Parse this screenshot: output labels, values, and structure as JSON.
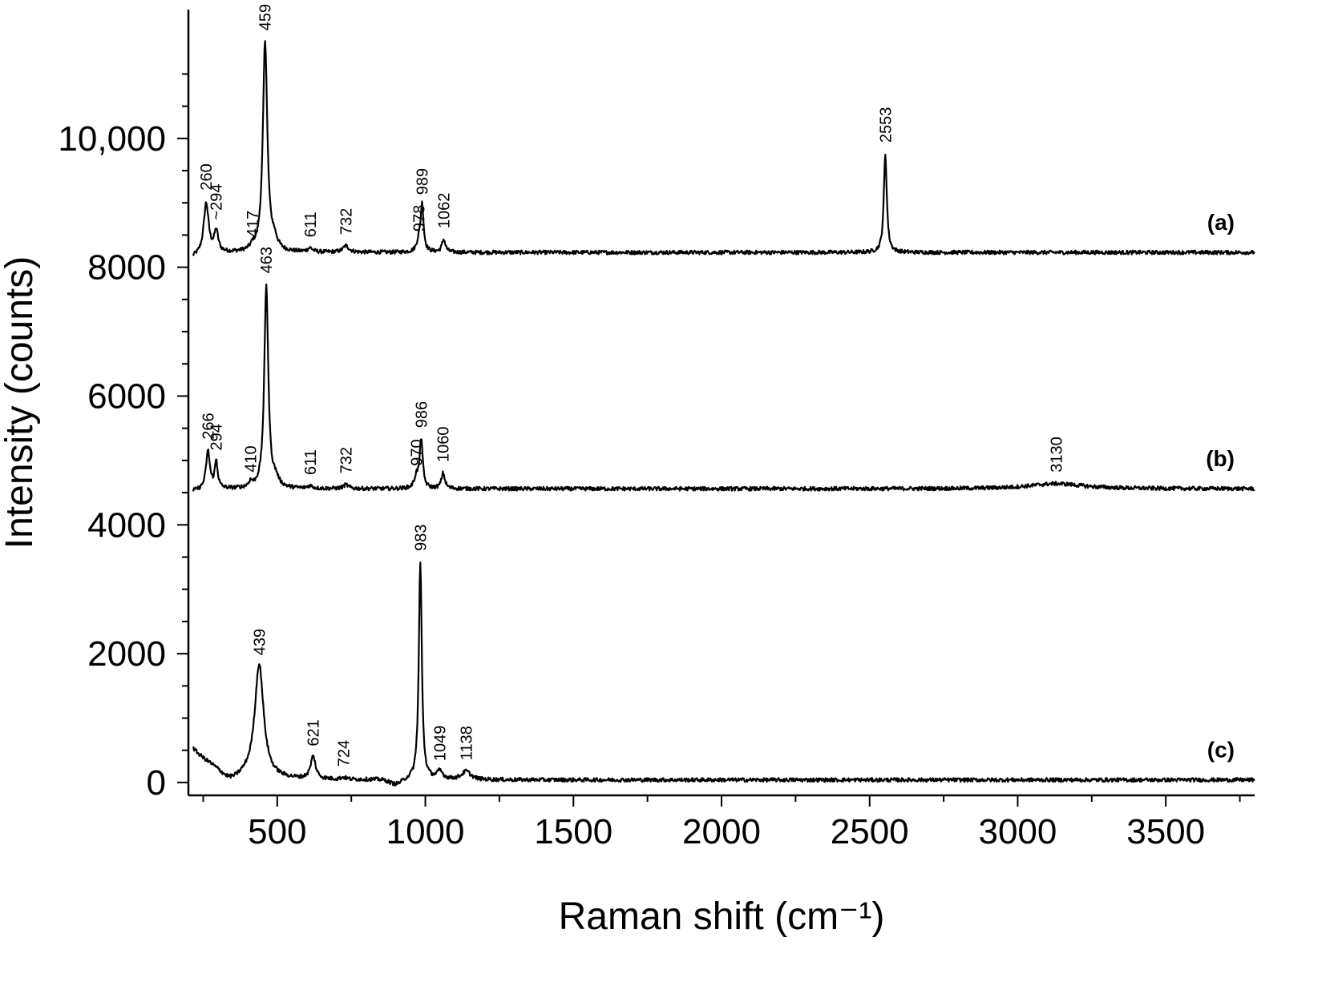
{
  "chart_data": {
    "type": "line",
    "xlabel": "Raman shift (cm⁻¹)",
    "ylabel": "Intensity (counts)",
    "xlim": [
      200,
      3800
    ],
    "ylim": [
      -200,
      12000
    ],
    "x_ticks": [
      500,
      1000,
      1500,
      2000,
      2500,
      3000,
      3500
    ],
    "x_tick_labels": [
      "500",
      "1000",
      "1500",
      "2000",
      "2500",
      "3000",
      "3500"
    ],
    "y_ticks": [
      0,
      2000,
      4000,
      6000,
      8000,
      10000
    ],
    "y_tick_labels": [
      "0",
      "2000",
      "4000",
      "6000",
      "8000",
      "10,000"
    ],
    "grid": false,
    "legend": "none",
    "series": [
      {
        "name": "(a)",
        "baseline": 8230,
        "baseline_start": 8150,
        "peaks": [
          {
            "x": 260,
            "height": 790,
            "width": 10,
            "label": "260"
          },
          {
            "x": 294,
            "height": 330,
            "width": 8,
            "label": "~294"
          },
          {
            "x": 417,
            "height": 60,
            "width": 8,
            "label": "417"
          },
          {
            "x": 459,
            "height": 3270,
            "width": 9,
            "label": "459"
          },
          {
            "x": 490,
            "height": 150,
            "width": 12,
            "label": ""
          },
          {
            "x": 611,
            "height": 60,
            "width": 10,
            "label": "611"
          },
          {
            "x": 732,
            "height": 100,
            "width": 12,
            "label": "732"
          },
          {
            "x": 978,
            "height": 150,
            "width": 8,
            "label": "978"
          },
          {
            "x": 989,
            "height": 720,
            "width": 6,
            "label": "989"
          },
          {
            "x": 1062,
            "height": 200,
            "width": 7,
            "label": "1062"
          },
          {
            "x": 2553,
            "height": 1530,
            "width": 6,
            "label": "2553"
          }
        ]
      },
      {
        "name": "(b)",
        "baseline": 4560,
        "baseline_start": 4520,
        "peaks": [
          {
            "x": 266,
            "height": 590,
            "width": 8,
            "label": "266"
          },
          {
            "x": 294,
            "height": 420,
            "width": 6,
            "label": "294"
          },
          {
            "x": 410,
            "height": 80,
            "width": 7,
            "label": "410"
          },
          {
            "x": 463,
            "height": 3170,
            "width": 8,
            "label": "463"
          },
          {
            "x": 495,
            "height": 120,
            "width": 12,
            "label": ""
          },
          {
            "x": 611,
            "height": 40,
            "width": 10,
            "label": "611"
          },
          {
            "x": 732,
            "height": 60,
            "width": 10,
            "label": "732"
          },
          {
            "x": 970,
            "height": 180,
            "width": 8,
            "label": "970"
          },
          {
            "x": 986,
            "height": 770,
            "width": 6,
            "label": "986"
          },
          {
            "x": 1060,
            "height": 240,
            "width": 7,
            "label": "1060"
          },
          {
            "x": 3130,
            "height": 80,
            "width": 110,
            "label": "3130"
          }
        ]
      },
      {
        "name": "(c)",
        "baseline": 40,
        "baseline_start": 530,
        "peaks": [
          {
            "x": 439,
            "height": 1760,
            "width": 18,
            "label": "439"
          },
          {
            "x": 621,
            "height": 350,
            "width": 10,
            "label": "621"
          },
          {
            "x": 724,
            "height": 30,
            "width": 10,
            "label": "724"
          },
          {
            "x": 983,
            "height": 3380,
            "width": 6,
            "label": "983"
          },
          {
            "x": 1049,
            "height": 120,
            "width": 12,
            "label": "1049"
          },
          {
            "x": 1138,
            "height": 130,
            "width": 18,
            "label": "1138"
          }
        ]
      }
    ]
  }
}
